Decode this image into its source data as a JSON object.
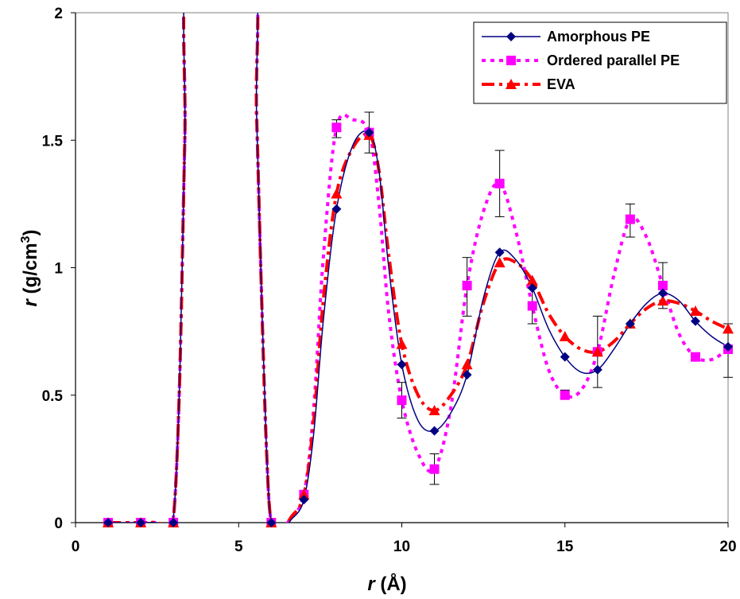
{
  "chart_data": {
    "type": "line",
    "title": "",
    "xlabel": "r (Å)",
    "xlabel_parts": {
      "symbol": "r",
      "unit": " (Å)"
    },
    "ylabel": "r (g/cm3)",
    "ylabel_parts": {
      "symbol": "r",
      "unit_pre": "  (g/cm",
      "sup": "3",
      "unit_post": ")"
    },
    "xlim": [
      0,
      20
    ],
    "ylim": [
      0,
      2
    ],
    "xticks": [
      0,
      5,
      10,
      15,
      20
    ],
    "yticks": [
      0,
      0.5,
      1,
      1.5,
      2
    ],
    "xtick_labels": [
      "0",
      "5",
      "10",
      "15",
      "20"
    ],
    "ytick_labels": [
      "0",
      "0.5",
      "1",
      "1.5",
      "2"
    ],
    "grid": false,
    "legend_position": "top-right",
    "series": [
      {
        "name": "Amorphous PE",
        "color": "#000080",
        "line_style": "solid",
        "marker": "diamond",
        "markers": [
          [
            1,
            0
          ],
          [
            2,
            0
          ],
          [
            3,
            0
          ],
          [
            6,
            0
          ],
          [
            7,
            0.09
          ],
          [
            8,
            1.23
          ],
          [
            9,
            1.53
          ],
          [
            10,
            0.62
          ],
          [
            11,
            0.36
          ],
          [
            12,
            0.58
          ],
          [
            13,
            1.06
          ],
          [
            14,
            0.92
          ],
          [
            15,
            0.65
          ],
          [
            16,
            0.6
          ],
          [
            17,
            0.78
          ],
          [
            18,
            0.9
          ],
          [
            19,
            0.79
          ],
          [
            20,
            0.69
          ]
        ],
        "curve": [
          [
            1,
            0
          ],
          [
            2,
            0
          ],
          [
            2.5,
            0
          ],
          [
            2.9,
            -0.01
          ],
          [
            3.05,
            0.1
          ],
          [
            3.2,
            0.6
          ],
          [
            3.35,
            1.5
          ],
          [
            3.5,
            2.2
          ],
          [
            5.4,
            2.2
          ],
          [
            5.55,
            1.6
          ],
          [
            5.7,
            0.9
          ],
          [
            5.85,
            0.3
          ],
          [
            6,
            0
          ],
          [
            6.3,
            -0.03
          ],
          [
            6.6,
            0.01
          ],
          [
            7,
            0.09
          ],
          [
            7.3,
            0.35
          ],
          [
            7.6,
            0.8
          ],
          [
            8,
            1.23
          ],
          [
            8.5,
            1.48
          ],
          [
            9,
            1.53
          ],
          [
            9.3,
            1.38
          ],
          [
            9.6,
            1.0
          ],
          [
            10,
            0.62
          ],
          [
            10.5,
            0.4
          ],
          [
            11,
            0.36
          ],
          [
            11.5,
            0.43
          ],
          [
            12,
            0.58
          ],
          [
            12.5,
            0.88
          ],
          [
            13,
            1.06
          ],
          [
            13.5,
            1.03
          ],
          [
            14,
            0.92
          ],
          [
            14.5,
            0.76
          ],
          [
            15,
            0.65
          ],
          [
            15.5,
            0.59
          ],
          [
            16,
            0.6
          ],
          [
            16.5,
            0.68
          ],
          [
            17,
            0.78
          ],
          [
            17.5,
            0.86
          ],
          [
            18,
            0.9
          ],
          [
            18.5,
            0.87
          ],
          [
            19,
            0.79
          ],
          [
            19.5,
            0.73
          ],
          [
            20,
            0.69
          ]
        ]
      },
      {
        "name": "Ordered parallel PE",
        "color": "#ff00ff",
        "line_style": "dotted",
        "marker": "square",
        "markers": [
          [
            1,
            0
          ],
          [
            2,
            0
          ],
          [
            3,
            0
          ],
          [
            6,
            0
          ],
          [
            7,
            0.11
          ],
          [
            8,
            1.55
          ],
          [
            9,
            1.53
          ],
          [
            10,
            0.48
          ],
          [
            11,
            0.21
          ],
          [
            12,
            0.93
          ],
          [
            13,
            1.33
          ],
          [
            14,
            0.85
          ],
          [
            15,
            0.5
          ],
          [
            16,
            0.67
          ],
          [
            17,
            1.19
          ],
          [
            18,
            0.93
          ],
          [
            19,
            0.65
          ],
          [
            20,
            0.68
          ]
        ],
        "curve": [
          [
            1,
            0
          ],
          [
            2,
            0
          ],
          [
            2.5,
            0
          ],
          [
            2.9,
            -0.01
          ],
          [
            3.05,
            0.1
          ],
          [
            3.2,
            0.6
          ],
          [
            3.35,
            1.5
          ],
          [
            3.5,
            2.2
          ],
          [
            5.4,
            2.2
          ],
          [
            5.55,
            1.6
          ],
          [
            5.7,
            0.9
          ],
          [
            5.85,
            0.3
          ],
          [
            6,
            0
          ],
          [
            6.3,
            -0.03
          ],
          [
            6.6,
            0.02
          ],
          [
            7,
            0.11
          ],
          [
            7.3,
            0.45
          ],
          [
            7.6,
            1.05
          ],
          [
            8,
            1.55
          ],
          [
            8.5,
            1.58
          ],
          [
            9,
            1.53
          ],
          [
            9.3,
            1.25
          ],
          [
            9.6,
            0.82
          ],
          [
            10,
            0.48
          ],
          [
            10.5,
            0.27
          ],
          [
            11,
            0.21
          ],
          [
            11.5,
            0.45
          ],
          [
            12,
            0.93
          ],
          [
            12.5,
            1.22
          ],
          [
            13,
            1.33
          ],
          [
            13.5,
            1.14
          ],
          [
            14,
            0.85
          ],
          [
            14.5,
            0.6
          ],
          [
            15,
            0.5
          ],
          [
            15.5,
            0.52
          ],
          [
            16,
            0.67
          ],
          [
            16.5,
            0.97
          ],
          [
            17,
            1.19
          ],
          [
            17.5,
            1.12
          ],
          [
            18,
            0.93
          ],
          [
            18.5,
            0.74
          ],
          [
            19,
            0.65
          ],
          [
            19.5,
            0.64
          ],
          [
            20,
            0.68
          ]
        ]
      },
      {
        "name": "EVA",
        "color": "#ff0000",
        "line_style": "dashed",
        "marker": "triangle",
        "markers": [
          [
            1,
            0
          ],
          [
            2,
            0
          ],
          [
            3,
            0
          ],
          [
            6,
            0
          ],
          [
            7,
            0.11
          ],
          [
            8,
            1.29
          ],
          [
            9,
            1.52
          ],
          [
            10,
            0.7
          ],
          [
            11,
            0.44
          ],
          [
            12,
            0.62
          ],
          [
            13,
            1.02
          ],
          [
            14,
            0.95
          ],
          [
            15,
            0.73
          ],
          [
            16,
            0.67
          ],
          [
            17,
            0.78
          ],
          [
            18,
            0.87
          ],
          [
            19,
            0.83
          ],
          [
            20,
            0.76
          ]
        ],
        "curve": [
          [
            1,
            0
          ],
          [
            2,
            0
          ],
          [
            2.5,
            0
          ],
          [
            2.9,
            -0.01
          ],
          [
            3.05,
            0.1
          ],
          [
            3.2,
            0.6
          ],
          [
            3.35,
            1.5
          ],
          [
            3.5,
            2.2
          ],
          [
            5.4,
            2.2
          ],
          [
            5.55,
            1.6
          ],
          [
            5.7,
            0.9
          ],
          [
            5.85,
            0.3
          ],
          [
            6,
            0
          ],
          [
            6.3,
            -0.03
          ],
          [
            6.6,
            0.02
          ],
          [
            7,
            0.11
          ],
          [
            7.3,
            0.4
          ],
          [
            7.6,
            0.88
          ],
          [
            8,
            1.29
          ],
          [
            8.5,
            1.47
          ],
          [
            9,
            1.52
          ],
          [
            9.3,
            1.38
          ],
          [
            9.6,
            1.05
          ],
          [
            10,
            0.7
          ],
          [
            10.5,
            0.5
          ],
          [
            11,
            0.44
          ],
          [
            11.5,
            0.5
          ],
          [
            12,
            0.62
          ],
          [
            12.5,
            0.86
          ],
          [
            13,
            1.02
          ],
          [
            13.5,
            1.02
          ],
          [
            14,
            0.95
          ],
          [
            14.5,
            0.82
          ],
          [
            15,
            0.73
          ],
          [
            15.5,
            0.68
          ],
          [
            16,
            0.67
          ],
          [
            16.5,
            0.71
          ],
          [
            17,
            0.78
          ],
          [
            17.5,
            0.84
          ],
          [
            18,
            0.87
          ],
          [
            18.5,
            0.86
          ],
          [
            19,
            0.83
          ],
          [
            19.5,
            0.79
          ],
          [
            20,
            0.76
          ]
        ]
      }
    ],
    "error_bars": [
      {
        "x": 8,
        "low": 1.51,
        "high": 1.58
      },
      {
        "x": 9,
        "low": 1.45,
        "high": 1.61
      },
      {
        "x": 10,
        "low": 0.41,
        "high": 0.55
      },
      {
        "x": 11,
        "low": 0.15,
        "high": 0.27
      },
      {
        "x": 12,
        "low": 0.81,
        "high": 1.04
      },
      {
        "x": 13,
        "low": 1.2,
        "high": 1.46
      },
      {
        "x": 14,
        "low": 0.78,
        "high": 0.92
      },
      {
        "x": 15,
        "low": 0.49,
        "high": 0.52
      },
      {
        "x": 16,
        "low": 0.53,
        "high": 0.81
      },
      {
        "x": 17,
        "low": 1.12,
        "high": 1.25
      },
      {
        "x": 18,
        "low": 0.84,
        "high": 1.02
      },
      {
        "x": 20,
        "low": 0.57,
        "high": 0.78
      }
    ]
  }
}
